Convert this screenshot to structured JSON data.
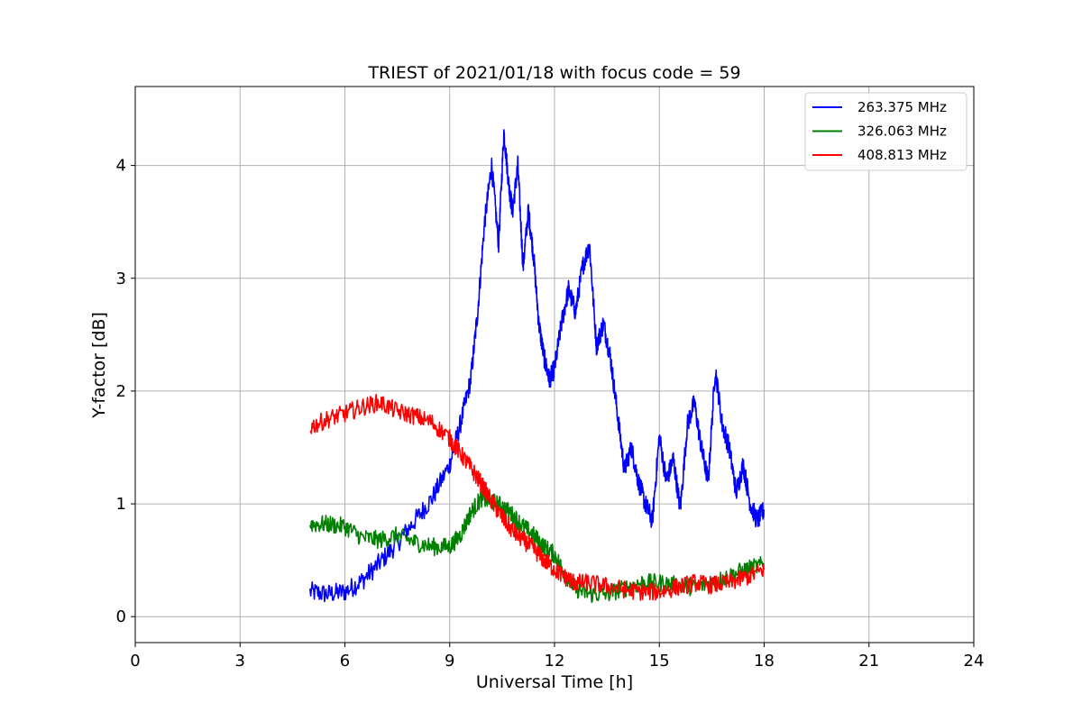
{
  "chart_data": {
    "type": "line",
    "title": "TRIEST of 2021/01/18 with focus code = 59",
    "xlabel": "Universal Time [h]",
    "ylabel": "Y-factor [dB]",
    "xlim": [
      0,
      24
    ],
    "ylim": [
      -0.23,
      4.7
    ],
    "xticks": [
      0,
      3,
      6,
      9,
      12,
      15,
      18,
      21,
      24
    ],
    "yticks": [
      0,
      1,
      2,
      3,
      4
    ],
    "grid": true,
    "legend_position": "top-right",
    "series": [
      {
        "name": "263.375 MHz",
        "color": "#0000ff",
        "x": [
          5.0,
          5.5,
          6.0,
          6.5,
          7.0,
          7.5,
          8.0,
          8.5,
          9.0,
          9.3,
          9.6,
          9.8,
          10.0,
          10.2,
          10.4,
          10.55,
          10.7,
          10.8,
          10.95,
          11.1,
          11.25,
          11.4,
          11.55,
          11.7,
          11.85,
          12.0,
          12.2,
          12.4,
          12.6,
          12.8,
          13.0,
          13.2,
          13.4,
          13.6,
          13.8,
          14.0,
          14.2,
          14.4,
          14.6,
          14.8,
          15.0,
          15.2,
          15.4,
          15.6,
          15.8,
          16.0,
          16.2,
          16.4,
          16.6,
          16.8,
          17.0,
          17.2,
          17.4,
          17.6,
          17.8,
          18.0
        ],
        "y": [
          0.22,
          0.2,
          0.22,
          0.32,
          0.48,
          0.65,
          0.85,
          1.05,
          1.35,
          1.7,
          2.1,
          2.7,
          3.5,
          4.0,
          3.3,
          4.3,
          3.8,
          3.6,
          4.0,
          3.1,
          3.6,
          3.2,
          2.6,
          2.3,
          2.1,
          2.2,
          2.6,
          2.9,
          2.7,
          3.1,
          3.3,
          2.4,
          2.6,
          2.3,
          1.8,
          1.3,
          1.5,
          1.2,
          1.0,
          0.85,
          1.6,
          1.2,
          1.4,
          0.95,
          1.7,
          1.9,
          1.5,
          1.2,
          2.2,
          1.7,
          1.5,
          1.1,
          1.35,
          1.0,
          0.85,
          0.95
        ]
      },
      {
        "name": "326.063 MHz",
        "color": "#008000",
        "x": [
          5.0,
          5.5,
          6.0,
          6.5,
          7.0,
          7.5,
          8.0,
          8.5,
          9.0,
          9.3,
          9.6,
          9.9,
          10.2,
          10.5,
          10.8,
          11.1,
          11.4,
          11.7,
          12.0,
          12.3,
          12.6,
          13.0,
          13.5,
          14.0,
          14.5,
          15.0,
          15.5,
          16.0,
          16.5,
          17.0,
          17.5,
          18.0
        ],
        "y": [
          0.82,
          0.82,
          0.8,
          0.7,
          0.68,
          0.72,
          0.66,
          0.62,
          0.62,
          0.72,
          0.92,
          1.05,
          1.02,
          0.98,
          0.9,
          0.8,
          0.72,
          0.62,
          0.55,
          0.38,
          0.25,
          0.2,
          0.2,
          0.25,
          0.3,
          0.3,
          0.28,
          0.26,
          0.3,
          0.36,
          0.42,
          0.46
        ]
      },
      {
        "name": "408.813 MHz",
        "color": "#ff0000",
        "x": [
          5.0,
          5.5,
          6.0,
          6.5,
          7.0,
          7.5,
          8.0,
          8.5,
          9.0,
          9.3,
          9.6,
          9.9,
          10.2,
          10.5,
          10.8,
          11.1,
          11.4,
          11.7,
          12.0,
          12.3,
          12.6,
          13.0,
          13.5,
          14.0,
          14.5,
          15.0,
          15.5,
          16.0,
          16.5,
          17.0,
          17.5,
          18.0
        ],
        "y": [
          1.68,
          1.75,
          1.8,
          1.86,
          1.9,
          1.82,
          1.78,
          1.72,
          1.58,
          1.45,
          1.32,
          1.18,
          1.02,
          0.88,
          0.76,
          0.68,
          0.6,
          0.5,
          0.42,
          0.35,
          0.3,
          0.3,
          0.27,
          0.24,
          0.22,
          0.22,
          0.26,
          0.3,
          0.28,
          0.3,
          0.35,
          0.42
        ]
      }
    ]
  }
}
